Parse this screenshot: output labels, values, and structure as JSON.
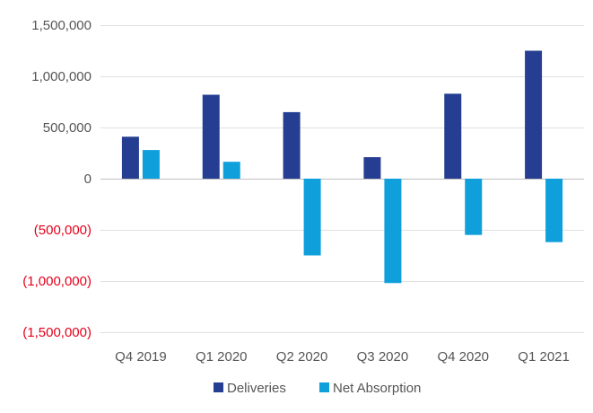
{
  "chart_data": {
    "type": "bar",
    "title": "",
    "xlabel": "",
    "ylabel": "",
    "categories": [
      "Q4 2019",
      "Q1 2020",
      "Q2 2020",
      "Q3 2020",
      "Q4 2020",
      "Q1 2021"
    ],
    "series": [
      {
        "name": "Deliveries",
        "color": "#253E91",
        "values": [
          410000,
          820000,
          650000,
          210000,
          830000,
          1250000
        ]
      },
      {
        "name": "Net Absorption",
        "color": "#0FA0DC",
        "values": [
          280000,
          165000,
          -750000,
          -1020000,
          -550000,
          -620000
        ]
      }
    ],
    "ylim": [
      -1500000,
      1500000
    ],
    "yticks": [
      1500000,
      1000000,
      500000,
      0,
      -500000,
      -1000000,
      -1500000
    ],
    "ytick_labels": [
      "1,500,000",
      "1,000,000",
      "500,000",
      "0",
      "(500,000)",
      "(1,000,000)",
      "(1,500,000)"
    ],
    "positive_label_color": "#555555",
    "negative_label_color": "#E4001B",
    "grid": true,
    "legend_position": "bottom"
  }
}
